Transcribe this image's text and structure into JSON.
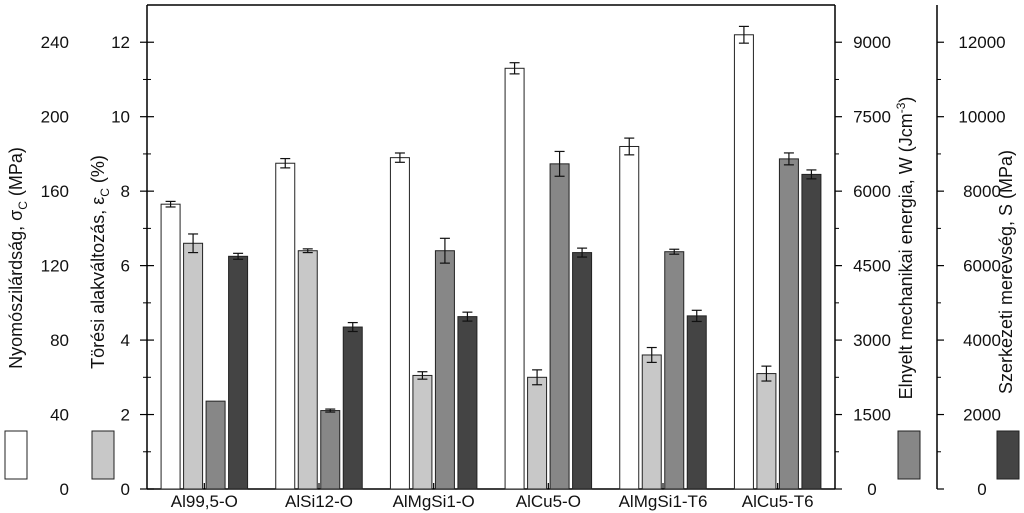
{
  "chart_data": {
    "type": "bar",
    "categories": [
      "Al99,5-O",
      "AlSi12-O",
      "AlMgSi1-O",
      "AlCu5-O",
      "AlMgSi1-T6",
      "AlCu5-T6"
    ],
    "series": [
      {
        "axis": "y1",
        "color": "#ffffff",
        "values": [
          153,
          175,
          178,
          226,
          184,
          244
        ],
        "errors": [
          1.5,
          2.5,
          2.5,
          3,
          4.5,
          4.5
        ]
      },
      {
        "axis": "y2",
        "color": "#c8c8c8",
        "values": [
          6.6,
          6.4,
          3.05,
          3.0,
          3.6,
          3.1
        ],
        "errors": [
          0.25,
          0.05,
          0.1,
          0.2,
          0.2,
          0.2
        ]
      },
      {
        "axis": "y3",
        "color": "#878787",
        "values": [
          1770,
          1580,
          4800,
          6550,
          4780,
          6650
        ],
        "errors": [
          0,
          30,
          250,
          250,
          50,
          120
        ]
      },
      {
        "axis": "y4",
        "color": "#444444",
        "values": [
          6250,
          4350,
          4630,
          6350,
          4650,
          8450
        ],
        "errors": [
          80,
          120,
          120,
          120,
          150,
          120
        ]
      }
    ],
    "axes": {
      "y1": {
        "label": "Nyomószilárdság, σ",
        "sub": "C",
        "unit": " (MPa)",
        "ylim": [
          0,
          260
        ],
        "ticks": [
          0,
          40,
          80,
          120,
          160,
          200,
          240
        ]
      },
      "y2": {
        "label": "Törési alakváltozás, ε",
        "sub": "C",
        "unit": " (%)",
        "ylim": [
          0,
          13
        ],
        "ticks": [
          0,
          2,
          4,
          6,
          8,
          10,
          12
        ]
      },
      "y3": {
        "label": "Elnyelt mechanikai energia, W (Jcm",
        "sup": "-3",
        "unit": ")",
        "ylim": [
          0,
          9750
        ],
        "ticks": [
          0,
          1500,
          3000,
          4500,
          6000,
          7500,
          9000
        ]
      },
      "y4": {
        "label": "Szerkezeti merevség, S (MPa)",
        "ylim": [
          0,
          13000
        ],
        "ticks": [
          0,
          2000,
          4000,
          6000,
          8000,
          10000,
          12000
        ]
      }
    },
    "grid": false,
    "legend": "swatches beside each axis label"
  }
}
